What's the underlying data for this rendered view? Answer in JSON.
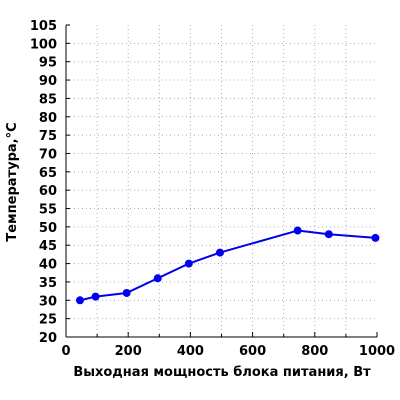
{
  "chart_data": {
    "type": "line",
    "title": "",
    "xlabel": "Выходная мощность блока питания, Вт",
    "ylabel": "Температура,°С",
    "xlim": [
      0,
      1000
    ],
    "ylim": [
      20,
      105
    ],
    "x_ticks": [
      0,
      200,
      400,
      600,
      800,
      1000
    ],
    "x_tick_labels": [
      "0",
      "200",
      "400",
      "600",
      "800",
      "1000"
    ],
    "y_ticks": [
      20,
      25,
      30,
      35,
      40,
      45,
      50,
      55,
      60,
      65,
      70,
      75,
      80,
      85,
      90,
      95,
      100,
      105
    ],
    "y_tick_labels": [
      "20",
      "25",
      "30",
      "35",
      "40",
      "45",
      "50",
      "55",
      "60",
      "65",
      "70",
      "75",
      "80",
      "85",
      "90",
      "95",
      "100",
      "105"
    ],
    "x_minor_step": 100,
    "y_minor_step": 5,
    "grid": true,
    "grid_style": "dotted",
    "legend": "none",
    "colors": {
      "series": "#0000ee",
      "axis": "#000000",
      "grid": "#b0b0b0"
    },
    "series": [
      {
        "x": [
          45,
          95,
          195,
          295,
          395,
          495,
          745,
          845,
          995
        ],
        "y": [
          30,
          31,
          32,
          36,
          40,
          43,
          49,
          48,
          47
        ]
      }
    ]
  }
}
